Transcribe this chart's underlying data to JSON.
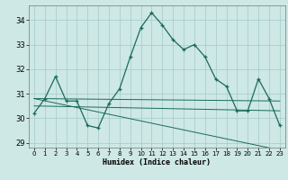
{
  "xlabel": "Humidex (Indice chaleur)",
  "ylabel": "",
  "xlim": [
    -0.5,
    23.5
  ],
  "ylim": [
    28.8,
    34.6
  ],
  "yticks": [
    29,
    30,
    31,
    32,
    33,
    34
  ],
  "xticks": [
    0,
    1,
    2,
    3,
    4,
    5,
    6,
    7,
    8,
    9,
    10,
    11,
    12,
    13,
    14,
    15,
    16,
    17,
    18,
    19,
    20,
    21,
    22,
    23
  ],
  "bg_color": "#cde8e5",
  "line_color": "#1a6b5a",
  "grid_color": "#aacfcc",
  "series1": {
    "x": [
      0,
      1,
      2,
      3,
      4,
      5,
      6,
      7,
      8,
      9,
      10,
      11,
      12,
      13,
      14,
      15,
      16,
      17,
      18,
      19,
      20,
      21,
      22,
      23
    ],
    "y": [
      30.2,
      30.8,
      31.7,
      30.7,
      30.7,
      29.7,
      29.6,
      30.6,
      31.2,
      32.5,
      33.7,
      34.3,
      33.8,
      33.2,
      32.8,
      33.0,
      32.5,
      31.6,
      31.3,
      30.3,
      30.3,
      31.6,
      30.8,
      29.7
    ]
  },
  "series2": {
    "x": [
      0,
      23
    ],
    "y": [
      30.8,
      30.7
    ]
  },
  "series3": {
    "x": [
      0,
      23
    ],
    "y": [
      30.5,
      30.3
    ]
  },
  "series4": {
    "x": [
      0,
      23
    ],
    "y": [
      30.8,
      28.7
    ]
  }
}
